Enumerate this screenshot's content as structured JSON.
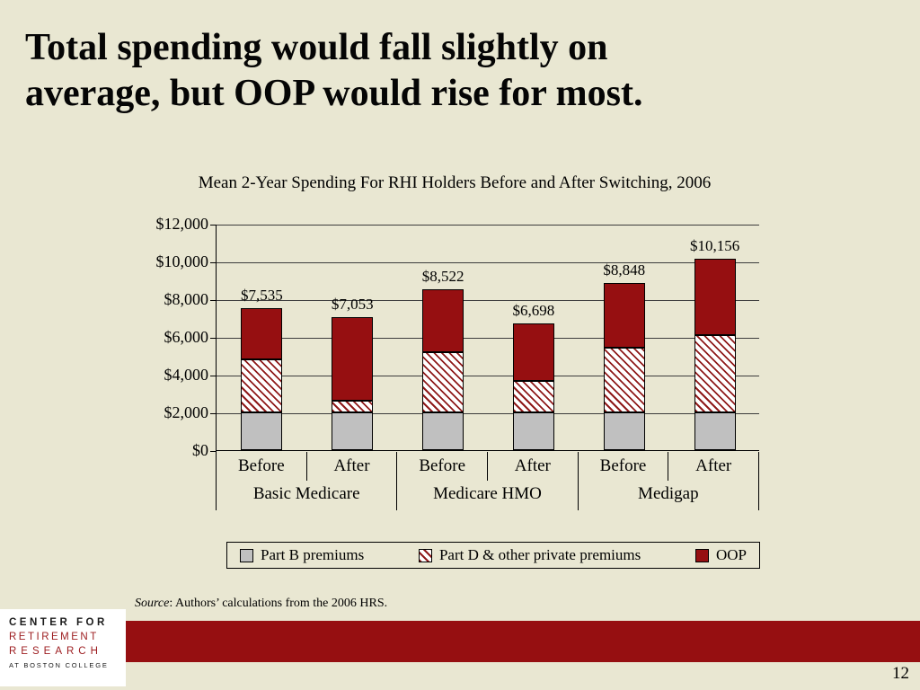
{
  "slide": {
    "title_lines": [
      "Total spending would fall slightly on",
      "average, but OOP would rise for most."
    ],
    "page_number": "12"
  },
  "source": {
    "label": "Source",
    "text": ": Authors’ calculations from the 2006 HRS."
  },
  "logo": {
    "line1": "CENTER FOR",
    "line2": "RETIREMENT",
    "line3": "RESEARCH",
    "line4": "AT BOSTON COLLEGE"
  },
  "colors": {
    "background": "#e9e7d2",
    "footer_red": "#960f11",
    "oop_red": "#960f11",
    "part_b_gray": "#c0c0c0"
  },
  "chart_data": {
    "type": "bar",
    "stacked": true,
    "title": "Mean 2-Year Spending For RHI Holders Before and After Switching, 2006",
    "categories": [
      "Before",
      "After",
      "Before",
      "After",
      "Before",
      "After"
    ],
    "groups": [
      "Basic Medicare",
      "Medicare HMO",
      "Medigap"
    ],
    "series": [
      {
        "name": "Part B premiums",
        "fill": "#c0c0c0",
        "values": [
          2000,
          2000,
          2000,
          2000,
          2000,
          2000
        ]
      },
      {
        "name": "Part D & other private premiums",
        "fill": "hatch",
        "values": [
          2800,
          620,
          3200,
          1650,
          3450,
          4100
        ]
      },
      {
        "name": "OOP",
        "fill": "#960f11",
        "values": [
          2735,
          4433,
          3322,
          3048,
          3398,
          4056
        ]
      }
    ],
    "totals": [
      "$7,535",
      "$7,053",
      "$8,522",
      "$6,698",
      "$8,848",
      "$10,156"
    ],
    "y_ticks": [
      {
        "label": "$12,000",
        "value": 12000
      },
      {
        "label": "$10,000",
        "value": 10000
      },
      {
        "label": "$8,000",
        "value": 8000
      },
      {
        "label": "$6,000",
        "value": 6000
      },
      {
        "label": "$4,000",
        "value": 4000
      },
      {
        "label": "$2,000",
        "value": 2000
      },
      {
        "label": "$0",
        "value": 0
      }
    ],
    "ylim": [
      0,
      12000
    ],
    "grid": true,
    "legend_position": "bottom"
  }
}
